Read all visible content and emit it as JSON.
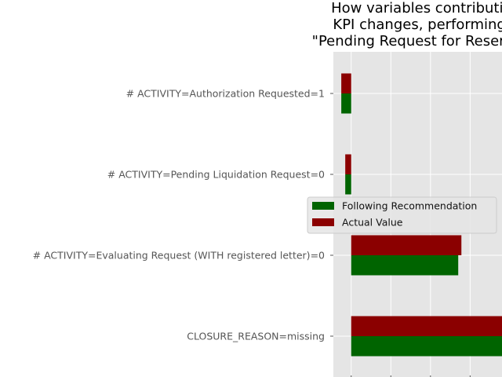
{
  "chart_data": {
    "type": "bar",
    "orientation": "horizontal",
    "title_lines": [
      "How variables contribution",
      "KPI changes, performing o",
      "\"Pending Request for Reservatio"
    ],
    "categories": [
      "# ACTIVITY=Authorization Requested=1",
      "# ACTIVITY=Pending Liquidation Request=0",
      "# ACTIVITY=Evaluating Request (WITH registered letter)=0",
      "CLOSURE_REASON=missing"
    ],
    "series": [
      {
        "name": "Following Recommendation",
        "color": "#006400",
        "values": [
          -0.0025,
          -0.0015,
          0.027,
          0.04
        ]
      },
      {
        "name": "Actual Value",
        "color": "#8b0000",
        "values": [
          -0.0025,
          -0.0015,
          0.0278,
          0.04
        ]
      }
    ],
    "xlim": [
      -0.0045,
      0.042
    ],
    "x_gridlines": [
      0,
      0.01,
      0.02,
      0.03,
      0.04
    ],
    "grid": true,
    "legend_position": "center-right",
    "background": "#e5e5e5"
  }
}
